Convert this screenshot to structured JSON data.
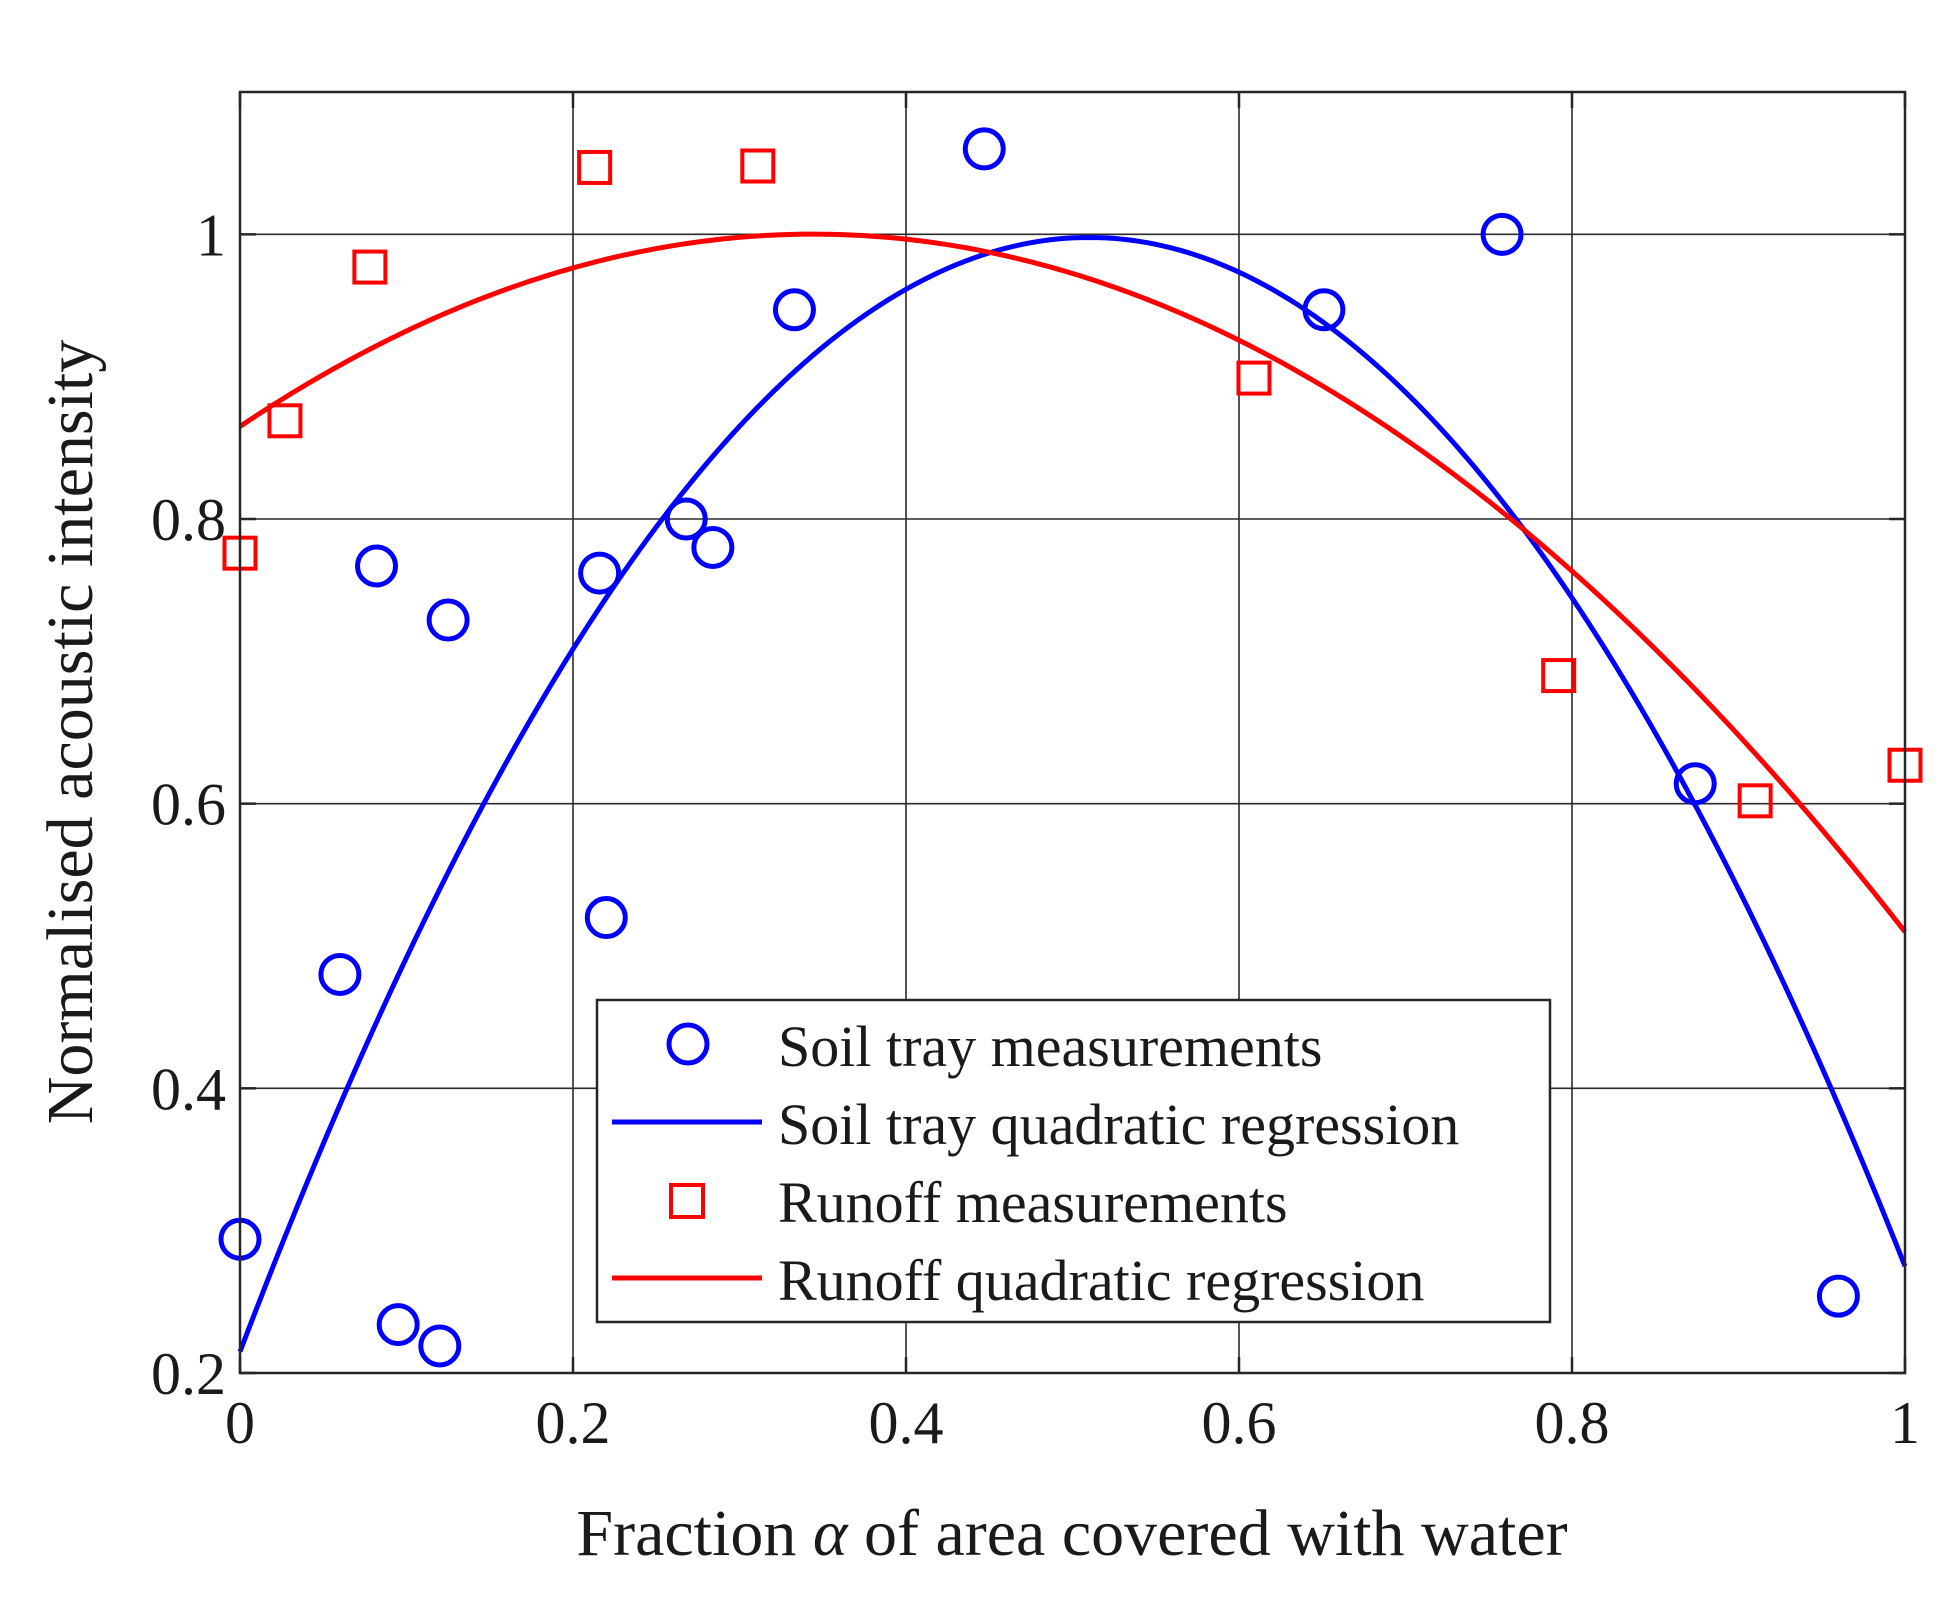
{
  "chart_data": {
    "type": "scatter",
    "title": "",
    "xlabel_parts": [
      "Fraction ",
      "α",
      " of area covered with water"
    ],
    "ylabel": "Normalised acoustic intensity",
    "xlim": [
      0,
      1
    ],
    "ylim": [
      0.2,
      1.1
    ],
    "grid": true,
    "legend_position": "bottom-center",
    "x_ticks": [
      0,
      0.2,
      0.4,
      0.6,
      0.8,
      1
    ],
    "x_tick_labels": [
      "0",
      "0.2",
      "0.4",
      "0.6",
      "0.8",
      "1"
    ],
    "y_ticks": [
      0.2,
      0.4,
      0.6,
      0.8,
      1
    ],
    "y_tick_labels": [
      "0.2",
      "0.4",
      "0.6",
      "0.8",
      "1"
    ],
    "series": [
      {
        "name": "Soil tray measurements",
        "kind": "scatter",
        "marker": "circle",
        "color": "#0000ff",
        "points": [
          [
            0.0,
            0.294
          ],
          [
            0.082,
            0.767
          ],
          [
            0.125,
            0.729
          ],
          [
            0.06,
            0.48
          ],
          [
            0.095,
            0.234
          ],
          [
            0.12,
            0.219
          ],
          [
            0.216,
            0.762
          ],
          [
            0.22,
            0.52
          ],
          [
            0.268,
            0.8
          ],
          [
            0.284,
            0.78
          ],
          [
            0.333,
            0.947
          ],
          [
            0.447,
            1.06
          ],
          [
            0.651,
            0.947
          ],
          [
            0.758,
            1.0
          ],
          [
            0.874,
            0.614
          ],
          [
            0.96,
            0.254
          ]
        ]
      },
      {
        "name": "Soil tray quadratic regression",
        "kind": "line",
        "color": "#0000ff",
        "coefficients": [
          0.215,
          3.07,
          -3.01
        ]
      },
      {
        "name": "Runoff measurements",
        "kind": "scatter",
        "marker": "square",
        "color": "#ff0000",
        "points": [
          [
            0.0,
            0.776
          ],
          [
            0.027,
            0.869
          ],
          [
            0.078,
            0.977
          ],
          [
            0.213,
            1.047
          ],
          [
            0.311,
            1.048
          ],
          [
            0.609,
            0.899
          ],
          [
            0.792,
            0.69
          ],
          [
            0.91,
            0.602
          ],
          [
            1.0,
            0.627
          ]
        ]
      },
      {
        "name": "Runoff quadratic regression",
        "kind": "line",
        "color": "#ff0000",
        "coefficients": [
          0.865,
          0.785,
          -1.14
        ]
      }
    ]
  }
}
